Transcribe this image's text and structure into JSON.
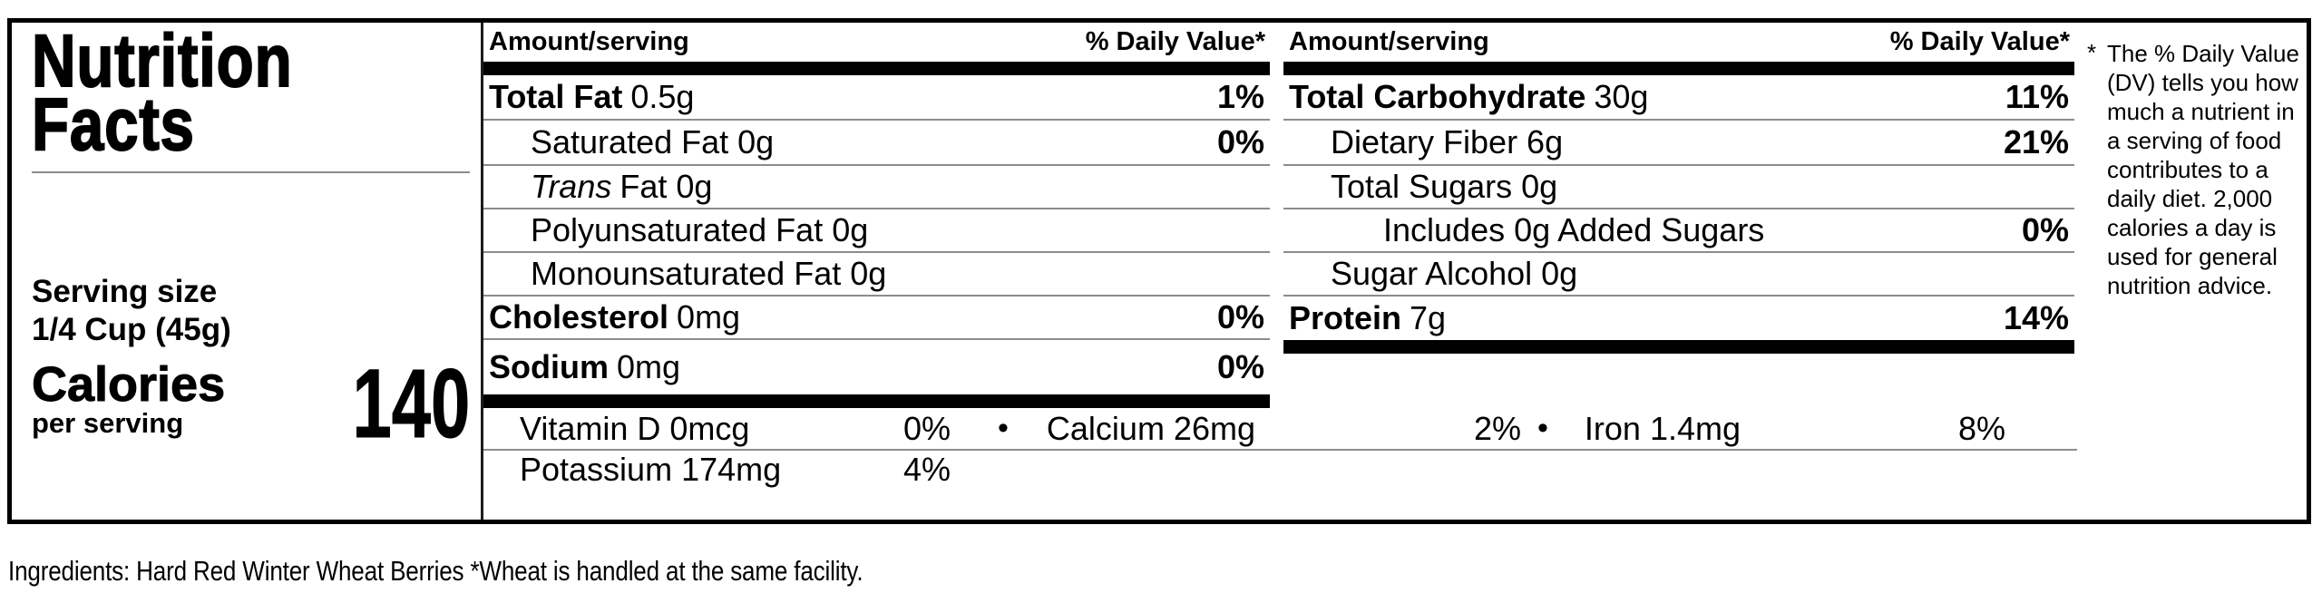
{
  "colors": {
    "text": "#000000",
    "background": "#ffffff",
    "rule": "#8c8c8c",
    "bar": "#000000"
  },
  "title": {
    "line1": "Nutrition",
    "line2": "Facts"
  },
  "serving": {
    "label": "Serving size",
    "size": "1/4 Cup (45g)"
  },
  "calories": {
    "label": "Calories",
    "sublabel": "per serving",
    "value": "140"
  },
  "col1": {
    "header": {
      "amount": "Amount/serving",
      "dv": "% Daily Value*"
    },
    "rows": [
      {
        "b": "Total Fat",
        "t": "0.5g",
        "dv": "1%"
      },
      {
        "t": "Saturated Fat 0g",
        "dv": "0%"
      },
      {
        "i": "Trans",
        "t": "Fat 0g"
      },
      {
        "t": "Polyunsaturated Fat 0g"
      },
      {
        "t": "Monounsaturated Fat 0g"
      },
      {
        "b": "Cholesterol",
        "t": "0mg",
        "dv": "0%"
      },
      {
        "b": "Sodium",
        "t": "0mg",
        "dv": "0%"
      }
    ]
  },
  "col2": {
    "header": {
      "amount": "Amount/serving",
      "dv": "% Daily Value*"
    },
    "rows": [
      {
        "b": "Total Carbohydrate",
        "t": "30g",
        "dv": "11%"
      },
      {
        "t": "Dietary Fiber 6g",
        "dv": "21%"
      },
      {
        "t": "Total Sugars 0g"
      },
      {
        "t": "Includes 0g Added Sugars",
        "dv": "0%"
      },
      {
        "t": "Sugar Alcohol 0g"
      },
      {
        "b": "Protein",
        "t": "7g",
        "dv": "14%"
      }
    ]
  },
  "micros": {
    "vitamin_d": {
      "name": "Vitamin D 0mcg",
      "dv": "0%"
    },
    "separator1": "•",
    "calcium": {
      "name": "Calcium 26mg",
      "dv": "2%"
    },
    "separator2": "•",
    "iron": {
      "name": "Iron 1.4mg",
      "dv": "8%"
    },
    "potassium": {
      "name": "Potassium 174mg",
      "dv": "4%"
    }
  },
  "footnote": {
    "marker": "*",
    "lines": [
      "The % Daily Value",
      "(DV) tells you how",
      "much a nutrient in",
      "a serving of food",
      "contributes to a",
      "daily diet. 2,000",
      "calories a day is",
      "used for general",
      "nutrition advice."
    ]
  },
  "ingredients": "Ingredients: Hard Red Winter Wheat Berries  *Wheat is handled at the same facility."
}
